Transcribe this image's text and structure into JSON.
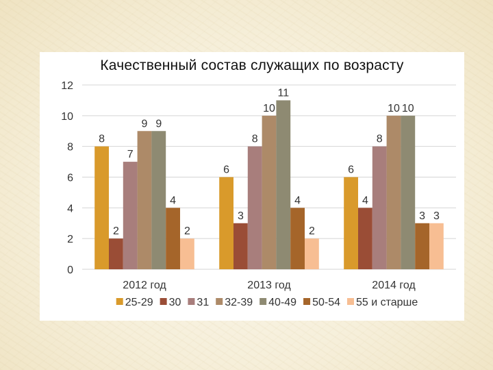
{
  "chart_data": {
    "type": "bar",
    "title": "Качественный состав служащих по возрасту",
    "categories": [
      "2012 год",
      "2013 год",
      "2014 год"
    ],
    "ylim": [
      0,
      12
    ],
    "yticks": [
      0,
      2,
      4,
      6,
      8,
      10,
      12
    ],
    "grid": true,
    "legend_position": "bottom",
    "series": [
      {
        "name": "25-29",
        "color": "#D99A2B",
        "values": [
          8,
          6,
          6
        ]
      },
      {
        "name": "30",
        "color": "#9A4D36",
        "values": [
          2,
          3,
          4
        ]
      },
      {
        "name": "31",
        "color": "#A87E7C",
        "values": [
          7,
          8,
          8
        ]
      },
      {
        "name": "32-39",
        "color": "#AD8A68",
        "values": [
          9,
          10,
          10
        ]
      },
      {
        "name": "40-49",
        "color": "#8E8A72",
        "values": [
          9,
          11,
          10
        ]
      },
      {
        "name": "50-54",
        "color": "#A5652A",
        "values": [
          4,
          4,
          3
        ]
      },
      {
        "name": "55 и старше",
        "color": "#F7BE93",
        "values": [
          2,
          2,
          3
        ]
      }
    ]
  }
}
